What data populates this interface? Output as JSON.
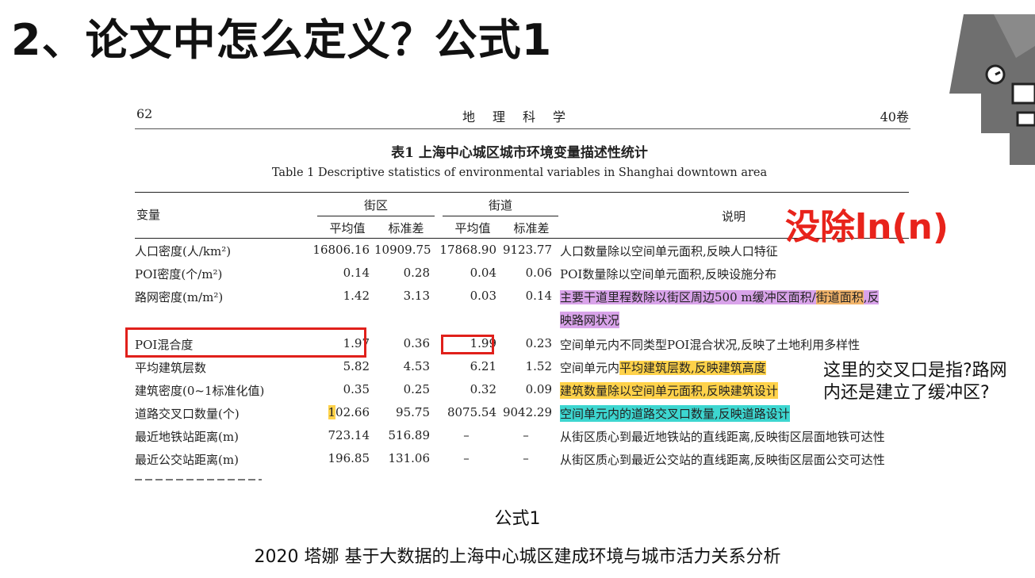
{
  "slide": {
    "title": "2、论文中怎么定义？公式1",
    "caption": "公式1",
    "citation": "2020 塔娜 基于大数据的上海中心城区建成环境与城市活力关系分析"
  },
  "paper": {
    "page_number": "62",
    "journal": "地理科学",
    "volume": "40卷",
    "table_title_zh": "表1  上海中心城区城市环境变量描述性统计",
    "table_title_en": "Table 1   Descriptive statistics of environmental variables in Shanghai downtown area",
    "headers": {
      "variable": "变量",
      "block": "街区",
      "street": "街道",
      "mean": "平均值",
      "sd": "标准差",
      "description": "说明"
    },
    "rows": [
      {
        "var": "人口密度(人/km²)",
        "v1": "16806.16",
        "v2": "10909.75",
        "v3": "17868.90",
        "v4": "9123.77",
        "desc": "人口数量除以空间单元面积,反映人口特征"
      },
      {
        "var": "POI密度(个/m²)",
        "v1": "0.14",
        "v2": "0.28",
        "v3": "0.04",
        "v4": "0.06",
        "desc": "POI数量除以空间单元面积,反映设施分布"
      },
      {
        "var": "路网密度(m/m²)",
        "v1": "1.42",
        "v2": "3.13",
        "v3": "0.03",
        "v4": "0.14",
        "desc_a": "主要干道里程数除以街区周边500 m缓冲区面积/",
        "desc_b": "街道面积",
        "desc_c": ",反",
        "desc_cont": "映路网状况"
      },
      {
        "var": "POI混合度",
        "v1": "1.97",
        "v2": "0.36",
        "v3": "1.99",
        "v4": "0.23",
        "desc": "空间单元内不同类型POI混合状况,反映了土地利用多样性"
      },
      {
        "var": "平均建筑层数",
        "v1": "5.82",
        "v2": "4.53",
        "v3": "6.21",
        "v4": "1.52",
        "desc_a": "空间单元内",
        "desc_b": "平均建筑层数,反映建筑高度"
      },
      {
        "var": "建筑密度(0~1标准化值)",
        "v1": "0.35",
        "v2": "0.25",
        "v3": "0.32",
        "v4": "0.09",
        "desc": "建筑数量除以空间单元面积,反映建筑设计"
      },
      {
        "var": "道路交叉口数量(个)",
        "v1_hl": "1",
        "v1": "02.66",
        "v2": "95.75",
        "v3": "8075.54",
        "v4": "9042.29",
        "desc": "空间单元内的道路交叉口数量,反映道路设计"
      },
      {
        "var": "最近地铁站距离(m)",
        "v1": "723.14",
        "v2": "516.89",
        "v3": "–",
        "v4": "–",
        "desc": "从街区质心到最近地铁站的直线距离,反映街区层面地铁可达性"
      },
      {
        "var": "最近公交站距离(m)",
        "v1": "196.85",
        "v2": "131.06",
        "v3": "–",
        "v4": "–",
        "desc": "从街区质心到最近公交站的直线距离,反映街区层面公交可达性"
      }
    ]
  },
  "annotations": {
    "ln_note": "没除ln(n)",
    "question": "这里的交叉口是指?路网内还是建立了缓冲区?"
  },
  "colors": {
    "red": "#e8231b",
    "purple_highlight": "#d9a3ea",
    "orange_highlight": "#f2b46a",
    "yellow_highlight": "#ffd24a",
    "cyan_highlight": "#3dd6d0"
  }
}
